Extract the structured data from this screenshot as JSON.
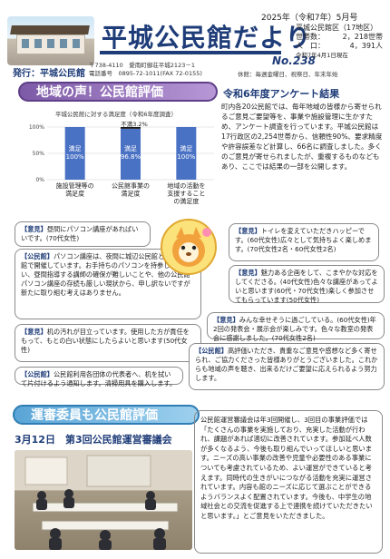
{
  "header": {
    "title": "平城公民館だより",
    "issue_date": "2025年（令和7年）5月号",
    "issue_no": "No.238",
    "publisher": "発行：平城公民館",
    "address": "〒738-4110　愛南町御荘平城2123－1",
    "phone": "電話番号　0895-72-1011(FAX 72-0155)",
    "hours": "休館：毎週金曜日、祝祭日、年末年始",
    "stats": {
      "heading": "平城公民館区（17地区）",
      "households_label": "世帯数：",
      "households_value": "2，218世帯",
      "population_label": "人　口：",
      "population_value": "4，391人",
      "note": "令和7年4月1日現在"
    }
  },
  "section1": {
    "banner": "地域の声！公民館評価",
    "survey_title": "令和6年度アンケート結果",
    "survey_text": "町内各20公民館では、毎年地域の皆様から寄せられるご意見ご要望等を、事業や施設管理に生かすため、アンケート調査を行っています。平城公民館は17行政区の2,254世帯から、信頼性90%、要求精度や許容誤差など計算し、66名に調査しました。多くのご意見が寄せられましたが、重複するものなどもあり、ここでは結果の一部を公開します。",
    "opinions": [
      {
        "tag": "【意見】",
        "text": "昼間にパソコン講座があればいいです。(70代女性)"
      },
      {
        "tag": "【公民館】",
        "text": "パソコン講座は、夜間に城辺公民館と西海公民館で開催しています。お手持ちのパソコンを持参しても良い、昼間指導する講師の確保が難しいことや、他の公民館パソコン講座の存続も厳しい現状から、申し訳ないですが新たに取り組む考えはありません。"
      },
      {
        "tag": "【意見】",
        "text": "机の汚れが目立っています。使用した方が責任をもって、もとの白い状態にしたらよいと思います(50代女性)"
      },
      {
        "tag": "【公民館】",
        "text": "公民館利用各団体の代表者へ、机を拭いて片付けるよう通知します。清掃用具を購入します。"
      },
      {
        "tag": "【意見】",
        "text": "トイレを変えていただきハッピーです。(60代女性)広々として気持ちよく楽しめます。(70代女性2名・60代女性2名)"
      },
      {
        "tag": "【意見】",
        "text": "魅力ある企画をして、こまやかな対応をしてくださる。(40代女性)色々な講座があってよいと思います(60代・70代女性)楽しく参加させてもらっています(50代女性)"
      },
      {
        "tag": "【意見】",
        "text": "みんな幸せそうに過ごしている。(60代女性)年2回の発表会・展示会が楽しみです。色々な教室の発表会に感謝しました。(70代女性2名)"
      },
      {
        "tag": "【公民館】",
        "text": "高評価いただき、貴重なご意見や感想など多く寄せられ、ご協力くださった皆様ありがとうございました。これからも地域の声を聴き、出来るだけご要望に応えられるよう努力します。"
      }
    ]
  },
  "chart_data": {
    "type": "bar",
    "title": "平城公民館に対する満足度（令和6年度調査）",
    "categories": [
      "施設管理等の満足度",
      "公民館事業の満足度",
      "地域の活動を支援することの満足度"
    ],
    "series": [
      {
        "name": "満足",
        "values": [
          100,
          96.8,
          100
        ],
        "color": "#4a72c4"
      },
      {
        "name": "不満",
        "values": [
          0,
          3.2,
          0
        ],
        "color": "#1a1a1a"
      }
    ],
    "segment_labels": [
      [
        "満足",
        "100%"
      ],
      [
        "満足",
        "96.8%"
      ],
      [
        "満足",
        "100%"
      ]
    ],
    "annotation": "不満3.2%",
    "yticks": [
      "100%",
      "50%",
      "0%"
    ],
    "ylim": [
      0,
      100
    ]
  },
  "section2": {
    "banner": "運審委員も公民館評価",
    "meeting_heading": "3月12日　第3回公民館運営審議会",
    "text": "公民館運営審議会は年3回開催し、3回目の事業評価では「たくさんの事業を実施しており、充実した活動が行われ、課題があれば適切に改善されています。参加延べ人数が多くなるよう、今後も取り組んでいってほしいと思います。ニーズの高い事業の改善や児童や必要性のある事業についても考慮されているため、よい運営ができていると考えます。同時代の生きがいにつながる活動を充実に運営されています。内容も館のニーズに応じて選ぶことができるようバランスよく配置されています。今後も、中学生の地域社会との交流を促進する上で連携を続けていただきたいと思います。」とご意見をいただきました。"
  }
}
